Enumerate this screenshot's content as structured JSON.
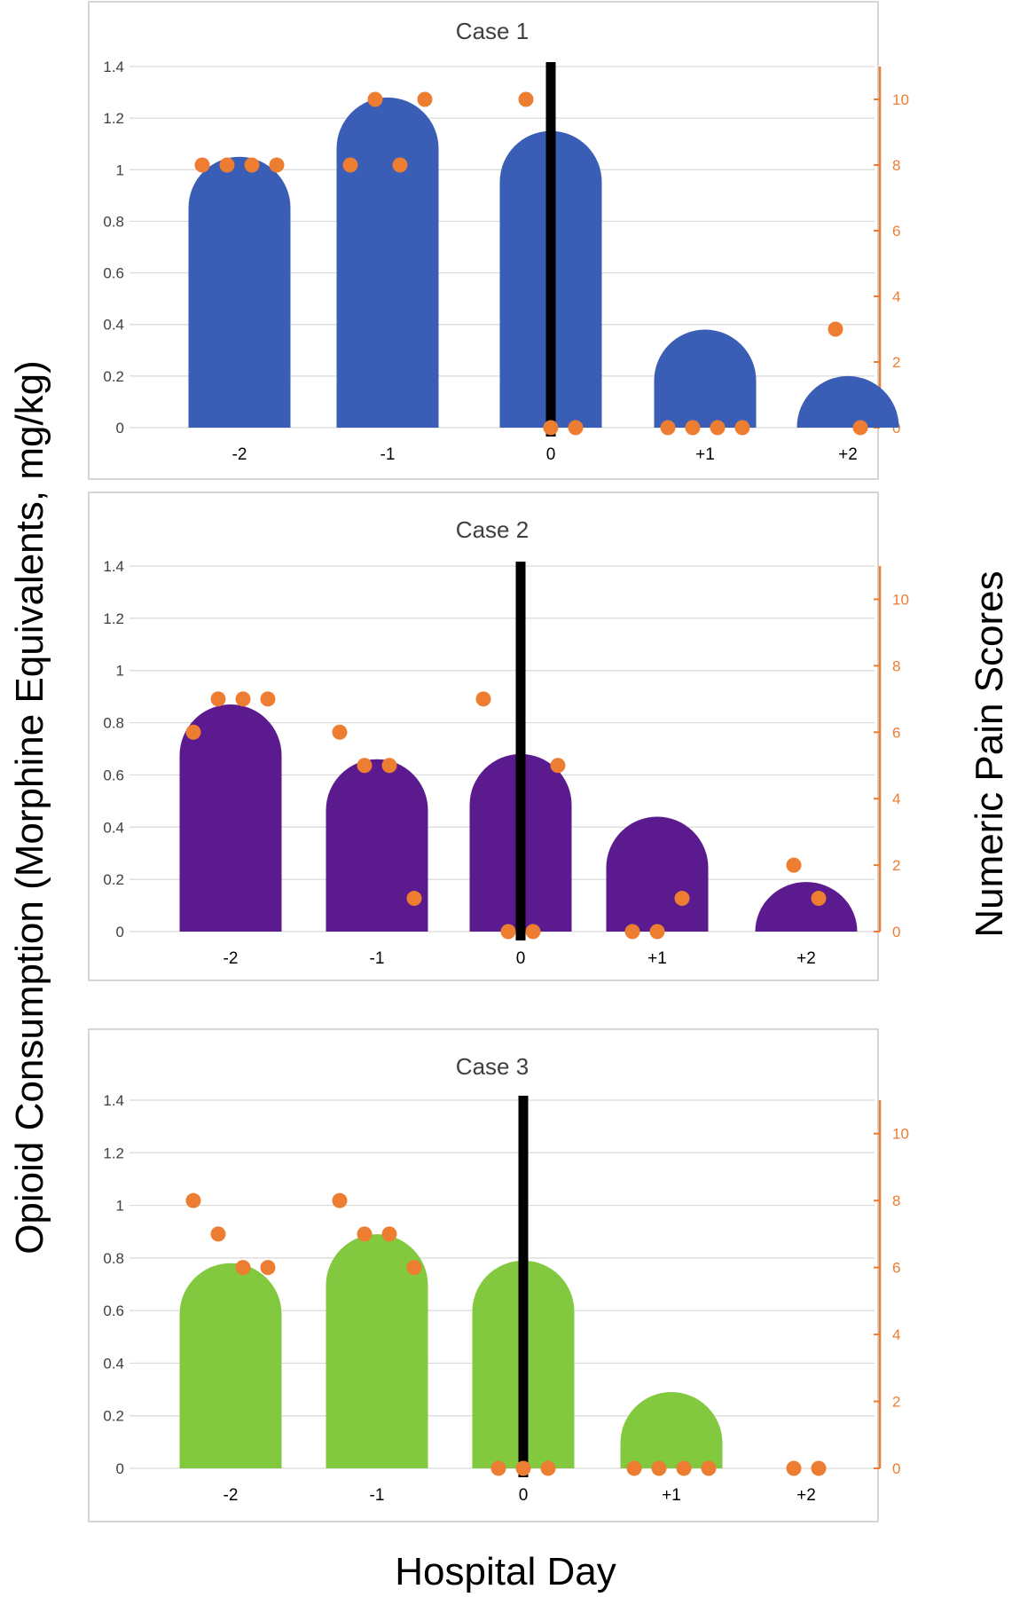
{
  "figure": {
    "ylabel_left": "Opioid Consumption (Morphine Equivalents, mg/kg)",
    "ylabel_right": "Numeric Pain Scores",
    "xlabel": "Hospital Day"
  },
  "chart_data": [
    {
      "type": "bar",
      "title": "Case 1",
      "categories": [
        "-2",
        "-1",
        "0",
        "+1",
        "+2"
      ],
      "bar_color": "#3a5db5",
      "values": [
        1.05,
        1.28,
        1.15,
        0.38,
        0.2
      ],
      "ylim": [
        0,
        1.4
      ],
      "yticks": [
        "0",
        "0.2",
        "0.4",
        "0.6",
        "0.8",
        "1",
        "1.2",
        "1.4"
      ],
      "y2lim": [
        0,
        11
      ],
      "y2ticks": [
        "0",
        "2",
        "4",
        "6",
        "8",
        "10"
      ],
      "surgery_day_index": 2,
      "pain_scores": [
        [
          8,
          8,
          8,
          8
        ],
        [
          8,
          10,
          8,
          10
        ],
        [
          10,
          0,
          0
        ],
        [
          0,
          0,
          0,
          0
        ],
        [
          3,
          0
        ]
      ]
    },
    {
      "type": "bar",
      "title": "Case 2",
      "categories": [
        "-2",
        "-1",
        "0",
        "+1",
        "+2"
      ],
      "bar_color": "#5b1b8e",
      "values": [
        0.87,
        0.66,
        0.68,
        0.44,
        0.19
      ],
      "ylim": [
        0,
        1.4
      ],
      "yticks": [
        "0",
        "0.2",
        "0.4",
        "0.6",
        "0.8",
        "1",
        "1.2",
        "1.4"
      ],
      "y2lim": [
        0,
        11
      ],
      "y2ticks": [
        "0",
        "2",
        "4",
        "6",
        "8",
        "10"
      ],
      "surgery_day_index": 2,
      "pain_scores": [
        [
          6,
          7,
          7,
          7
        ],
        [
          6,
          5,
          5,
          1
        ],
        [
          7,
          0,
          0,
          5
        ],
        [
          0,
          0,
          1
        ],
        [
          2,
          1
        ]
      ]
    },
    {
      "type": "bar",
      "title": "Case 3",
      "categories": [
        "-2",
        "-1",
        "0",
        "+1",
        "+2"
      ],
      "bar_color": "#82c93f",
      "values": [
        0.78,
        0.89,
        0.79,
        0.29,
        0
      ],
      "ylim": [
        0,
        1.4
      ],
      "yticks": [
        "0",
        "0.2",
        "0.4",
        "0.6",
        "0.8",
        "1",
        "1.2",
        "1.4"
      ],
      "y2lim": [
        0,
        11
      ],
      "y2ticks": [
        "0",
        "2",
        "4",
        "6",
        "8",
        "10"
      ],
      "surgery_day_index": 2,
      "pain_scores": [
        [
          8,
          7,
          6,
          6
        ],
        [
          8,
          7,
          7,
          6
        ],
        [
          0,
          0,
          0
        ],
        [
          0,
          0,
          0,
          0
        ],
        [
          0,
          0
        ]
      ]
    }
  ]
}
